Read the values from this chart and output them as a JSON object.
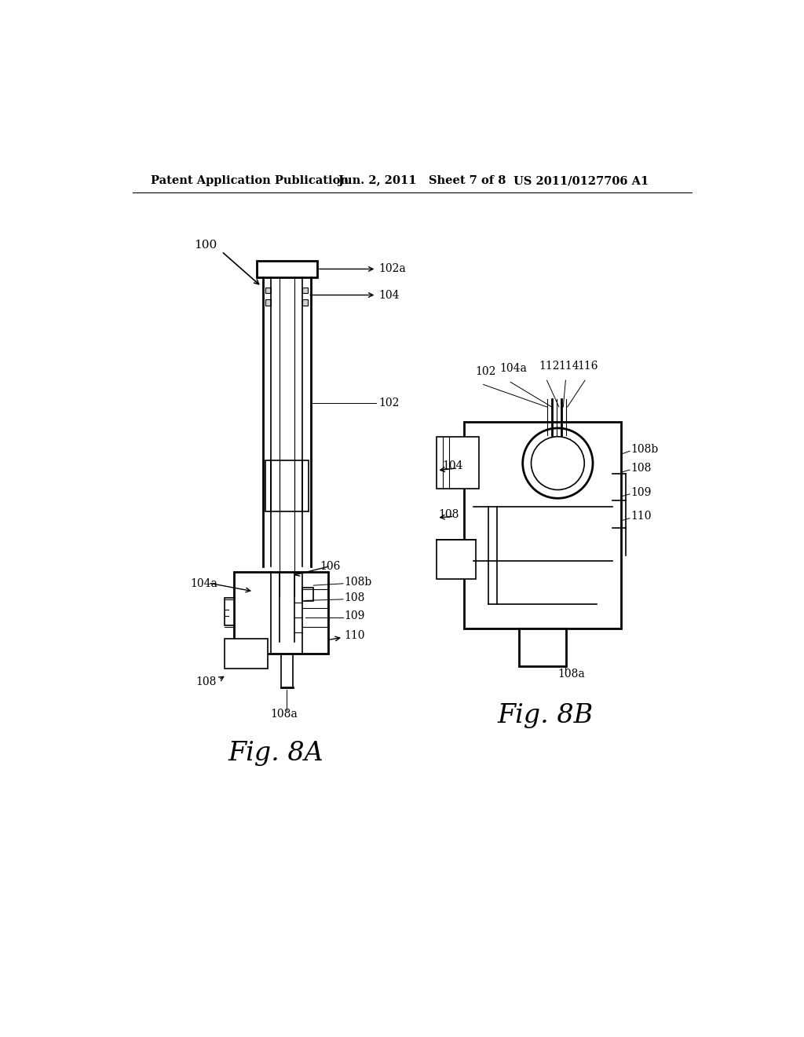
{
  "bg_color": "#ffffff",
  "header_left": "Patent Application Publication",
  "header_mid": "Jun. 2, 2011   Sheet 7 of 8",
  "header_right": "US 2011/0127706 A1",
  "fig8a_label": "Fig. 8A",
  "fig8b_label": "Fig. 8B",
  "ref_100": "100",
  "ref_102": "102",
  "ref_102a": "102a",
  "ref_104": "104",
  "ref_104a": "104a",
  "ref_106": "106",
  "ref_108": "108",
  "ref_108a": "108a",
  "ref_108b": "108b",
  "ref_109": "109",
  "ref_110": "110",
  "ref_112": "112",
  "ref_114": "114",
  "ref_116": "116"
}
